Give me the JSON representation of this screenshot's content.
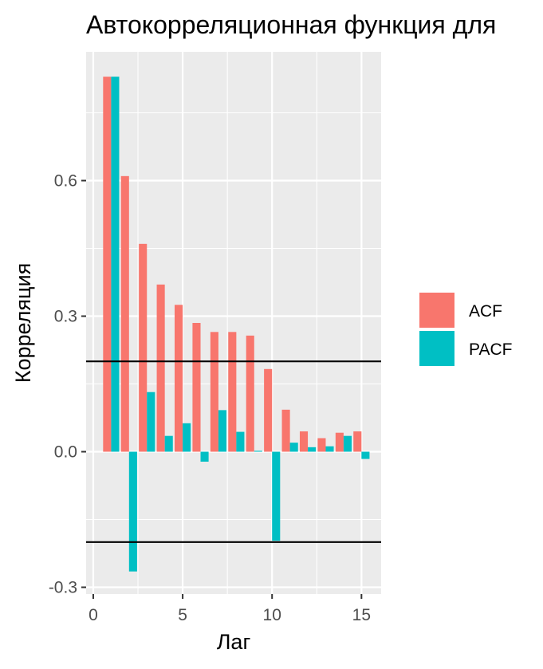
{
  "chart_data": {
    "type": "bar",
    "title": "Автокорреляционная функция для",
    "xlabel": "Лаг",
    "ylabel": "Корреляция",
    "xlim": [
      -0.4,
      16.1
    ],
    "ylim": [
      -0.315,
      0.885
    ],
    "x_ticks": [
      "0",
      "5",
      "10",
      "15"
    ],
    "y_ticks": [
      "-0.3",
      "0.0",
      "0.3",
      "0.6"
    ],
    "grid": true,
    "legend_position": "right",
    "x": [
      1,
      2,
      3,
      4,
      5,
      6,
      7,
      8,
      9,
      10,
      11,
      12,
      13,
      14,
      15
    ],
    "series": [
      {
        "name": "ACF",
        "color": "#F8766D",
        "values": [
          0.83,
          0.61,
          0.46,
          0.37,
          0.325,
          0.285,
          0.265,
          0.265,
          0.257,
          0.183,
          0.093,
          0.045,
          0.03,
          0.042,
          0.045
        ]
      },
      {
        "name": "PACF",
        "color": "#00BFC4",
        "values": [
          0.83,
          -0.265,
          0.132,
          0.035,
          0.063,
          -0.022,
          0.092,
          0.044,
          0.002,
          -0.197,
          0.02,
          0.01,
          0.012,
          0.035,
          -0.016
        ]
      }
    ],
    "hlines": [
      0.2,
      -0.2
    ],
    "hline_color": "#000000"
  }
}
